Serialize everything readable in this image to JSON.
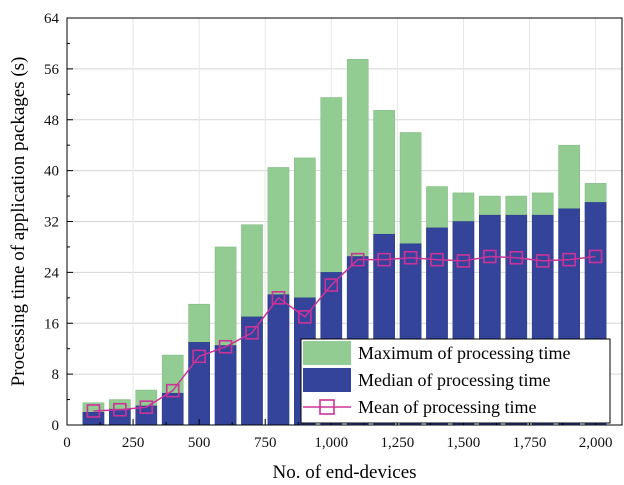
{
  "chart_data": {
    "type": "bar",
    "xlabel": "No. of end-devices",
    "ylabel": "Processing time of application packages (s)",
    "xlim": [
      0,
      2100
    ],
    "ylim": [
      0,
      64
    ],
    "x_ticks": [
      0,
      250,
      500,
      750,
      1000,
      1250,
      1500,
      1750,
      2000
    ],
    "x_tick_labels": [
      "0",
      "250",
      "500",
      "750",
      "1,000",
      "1,250",
      "1,500",
      "1,750",
      "2,000"
    ],
    "y_ticks": [
      0,
      8,
      16,
      24,
      32,
      40,
      48,
      56,
      64
    ],
    "y_tick_labels": [
      "0",
      "8",
      "16",
      "24",
      "32",
      "40",
      "48",
      "56",
      "64"
    ],
    "grid": true,
    "legend_position": "bottom-right",
    "x": [
      100,
      200,
      300,
      400,
      500,
      600,
      700,
      800,
      900,
      1000,
      1100,
      1200,
      1300,
      1400,
      1500,
      1600,
      1700,
      1800,
      1900,
      2000
    ],
    "series": [
      {
        "name": "Maximum of processing time",
        "kind": "bar",
        "color": "#93cc93",
        "values": [
          3.5,
          4.0,
          5.5,
          11.0,
          19.0,
          28.0,
          31.5,
          40.5,
          42.0,
          51.5,
          57.5,
          49.5,
          46.0,
          37.5,
          36.5,
          36.0,
          36.0,
          36.5,
          44.0,
          38.0
        ]
      },
      {
        "name": "Median of processing time",
        "kind": "bar",
        "color": "#33449a",
        "values": [
          2.0,
          2.5,
          3.0,
          5.0,
          13.0,
          12.5,
          17.0,
          20.5,
          20.0,
          24.0,
          26.5,
          30.0,
          28.5,
          31.0,
          32.0,
          33.0,
          33.0,
          33.0,
          34.0,
          35.0
        ]
      },
      {
        "name": "Mean of processing time",
        "kind": "line",
        "color": "#cc3399",
        "values": [
          2.2,
          2.4,
          2.8,
          5.4,
          10.8,
          12.3,
          14.5,
          20.0,
          17.0,
          22.0,
          26.0,
          26.0,
          26.3,
          26.0,
          25.8,
          26.5,
          26.3,
          25.8,
          26.0,
          26.5
        ]
      }
    ]
  }
}
